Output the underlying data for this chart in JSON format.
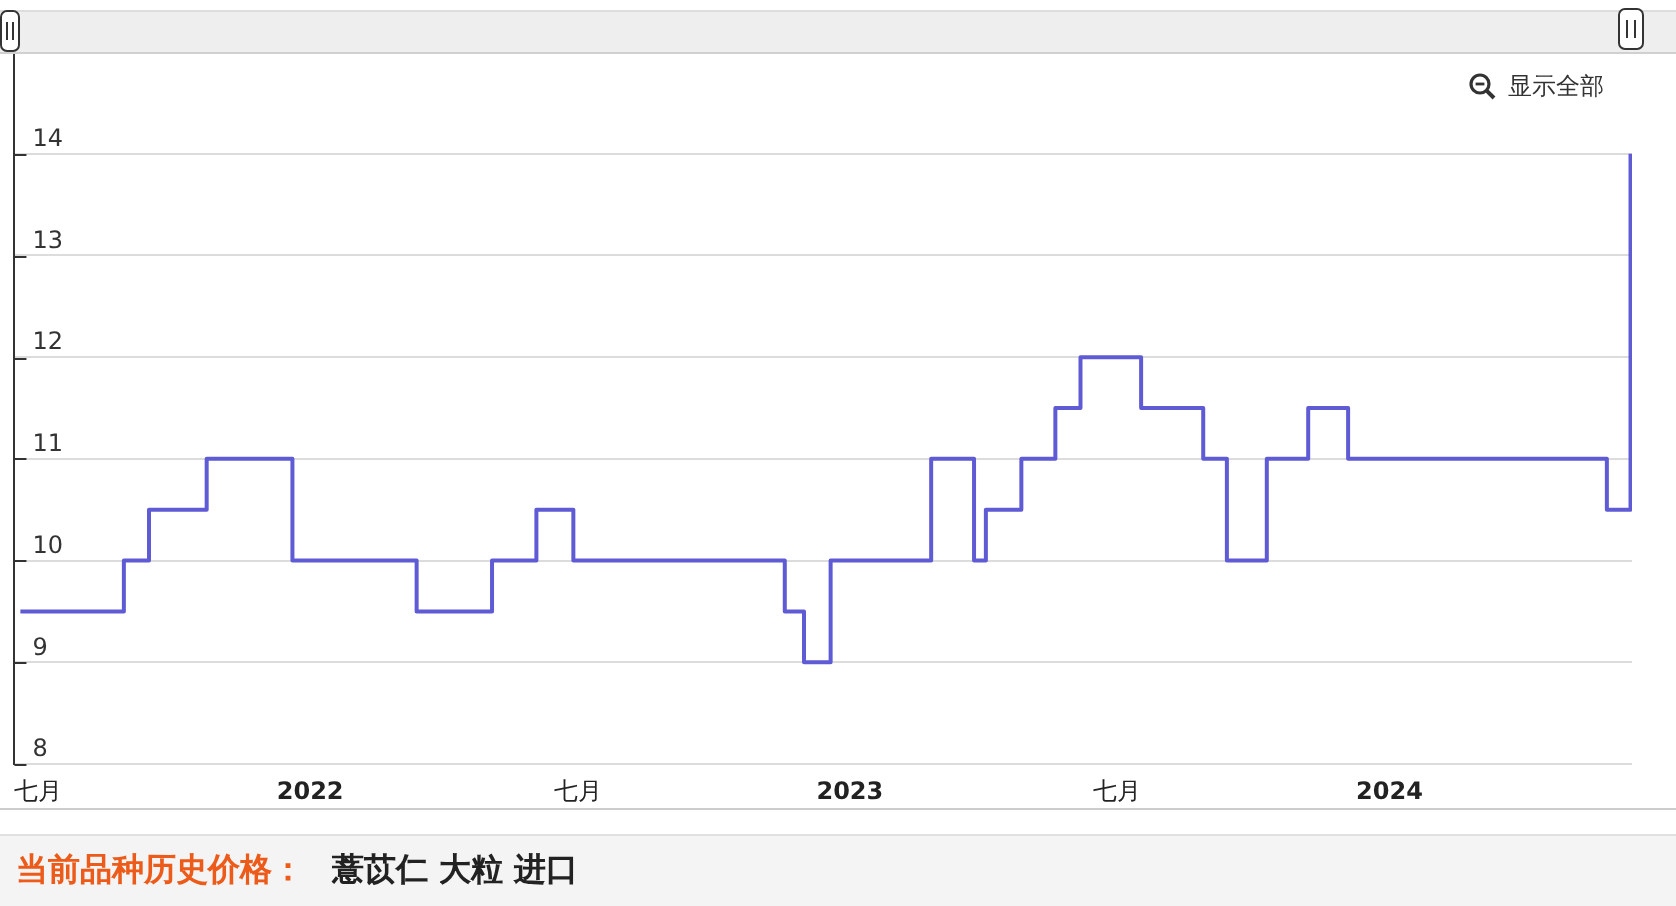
{
  "chart_data": {
    "type": "step",
    "title": "当前品种历史价格：",
    "subtitle": "薏苡仁 大粒 进口",
    "annotations": [
      "显示全部"
    ],
    "x": [
      "2021-06-19",
      "2021-08-28",
      "2021-09-14",
      "2021-10-23",
      "2021-12-20",
      "2022-03-14",
      "2022-05-04",
      "2022-06-03",
      "2022-06-28",
      "2022-11-18",
      "2022-12-01",
      "2022-12-19",
      "2023-02-25",
      "2023-03-26",
      "2023-04-03",
      "2023-04-27",
      "2023-05-20",
      "2023-06-06",
      "2023-07-17",
      "2023-08-28",
      "2023-09-13",
      "2023-10-10",
      "2023-11-07",
      "2023-12-04",
      "2024-05-27",
      "2024-06-12"
    ],
    "series": [
      {
        "color": "#5f5bd4",
        "values": [
          9.5,
          10,
          10.5,
          11,
          10,
          9.5,
          10,
          10.5,
          10,
          9.5,
          9,
          10,
          11,
          10,
          10.5,
          11,
          11.5,
          12,
          11.5,
          11,
          10,
          11,
          11.5,
          11,
          10.5,
          14
        ]
      }
    ],
    "xlim": [
      "2021-06-15",
      "2024-06-13"
    ],
    "xticks": [
      {
        "value": "2021-07",
        "label": "七月"
      },
      "2022",
      {
        "value": "2022-07",
        "label": "七月"
      },
      "2023",
      {
        "value": "2023-07",
        "label": "七月"
      },
      "2024"
    ],
    "ylim": [
      8,
      15
    ],
    "yticks": [
      8,
      9,
      10,
      11,
      12,
      13,
      14
    ],
    "grid": "y",
    "legend": false,
    "marker": "none"
  }
}
